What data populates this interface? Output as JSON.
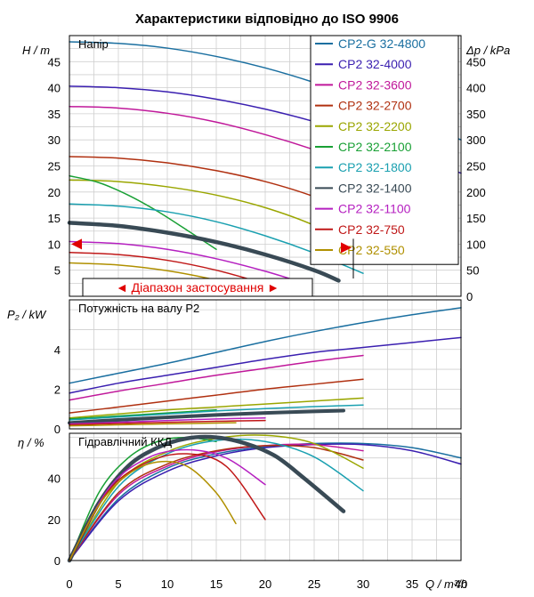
{
  "title": "Характеристики відповідно до ISO 9906",
  "chart_data": [
    {
      "type": "line",
      "panel": "head",
      "title": "Напір",
      "ylabel": "H / m",
      "y2label": "Δp / kPa",
      "xlim": [
        0,
        40
      ],
      "ylim": [
        0,
        50
      ],
      "y2lim": [
        0,
        500
      ],
      "yticks": [
        5,
        10,
        15,
        20,
        25,
        30,
        35,
        40,
        45
      ],
      "y2ticks": [
        0,
        50,
        100,
        150,
        200,
        250,
        300,
        350,
        400,
        450
      ],
      "legend_position": "top-right",
      "operating_range_label": "◄ Діапазон застосування ►",
      "operating_range": [
        0,
        29
      ],
      "series": [
        {
          "name": "CP2-G 32-4800",
          "color": "#1a6fa0",
          "x": [
            0,
            5,
            10,
            15,
            20,
            25,
            30,
            35,
            40
          ],
          "y": [
            48.8,
            48.5,
            47.6,
            46,
            43.8,
            41,
            37.7,
            34,
            30
          ]
        },
        {
          "name": "CP2 32-4000",
          "color": "#3a1fb0",
          "x": [
            0,
            5,
            10,
            15,
            20,
            25,
            30,
            35,
            40
          ],
          "y": [
            40.3,
            40,
            39.2,
            37.8,
            35.9,
            33.5,
            30.6,
            27.3,
            23.6
          ]
        },
        {
          "name": "CP2 32-3600",
          "color": "#c0189a",
          "x": [
            0,
            5,
            10,
            15,
            20,
            25,
            30
          ],
          "y": [
            36.4,
            36.1,
            35.1,
            33.4,
            31,
            28.1,
            24.7
          ]
        },
        {
          "name": "CP2 32-2700",
          "color": "#b03010",
          "x": [
            0,
            5,
            10,
            15,
            20,
            25,
            30
          ],
          "y": [
            26.8,
            26.5,
            25.6,
            24.1,
            22,
            19.1,
            15.1
          ]
        },
        {
          "name": "CP2 32-2200",
          "color": "#9aa600",
          "x": [
            0,
            5,
            10,
            15,
            20,
            25,
            30
          ],
          "y": [
            22.3,
            22,
            21,
            19.4,
            17,
            13.6,
            8.8
          ]
        },
        {
          "name": "CP2 32-2100",
          "color": "#19a035",
          "x": [
            0,
            3,
            6,
            9,
            12,
            15
          ],
          "y": [
            23.1,
            21.8,
            19.4,
            16.3,
            12.7,
            9
          ]
        },
        {
          "name": "CP2 32-1800",
          "color": "#1aa0b0",
          "x": [
            0,
            5,
            10,
            15,
            20,
            25,
            30
          ],
          "y": [
            17.7,
            17.3,
            16.2,
            14.3,
            11.6,
            8.3,
            4.4
          ]
        },
        {
          "name": "CP2 32-1400",
          "color": "#394a55",
          "x": [
            0,
            5,
            10,
            15,
            20,
            25,
            27.5
          ],
          "y": [
            14.1,
            13.5,
            12.2,
            10.4,
            8,
            5,
            3
          ]
        },
        {
          "name": "CP2 32-1100",
          "color": "#b520c0",
          "x": [
            0,
            5,
            10,
            15,
            20,
            24
          ],
          "y": [
            10.5,
            10.1,
            9,
            7.2,
            4.8,
            2.5
          ]
        },
        {
          "name": "CP2 32-750",
          "color": "#c01818",
          "x": [
            0,
            5,
            10,
            15,
            20
          ],
          "y": [
            8.4,
            8,
            6.9,
            5,
            2.4
          ]
        },
        {
          "name": "CP2 32-550",
          "color": "#b09000",
          "x": [
            0,
            5,
            10,
            15,
            18
          ],
          "y": [
            6.4,
            6,
            4.9,
            3.1,
            1.6
          ]
        }
      ]
    },
    {
      "type": "line",
      "panel": "power",
      "title": "Потужність на валу P2",
      "ylabel": "P₂ / kW",
      "xlim": [
        0,
        40
      ],
      "ylim": [
        0,
        6.5
      ],
      "yticks": [
        0,
        2,
        4
      ],
      "series": [
        {
          "name": "CP2-G 32-4800",
          "color": "#1a6fa0",
          "x": [
            0,
            5,
            10,
            15,
            20,
            25,
            30,
            35,
            40
          ],
          "y": [
            2.3,
            2.8,
            3.3,
            3.85,
            4.4,
            4.9,
            5.35,
            5.75,
            6.1
          ]
        },
        {
          "name": "CP2 32-4000",
          "color": "#3a1fb0",
          "x": [
            0,
            5,
            10,
            15,
            20,
            25,
            30,
            35,
            40
          ],
          "y": [
            1.8,
            2.3,
            2.7,
            3.1,
            3.5,
            3.85,
            4.1,
            4.35,
            4.6
          ]
        },
        {
          "name": "CP2 32-3600",
          "color": "#c0189a",
          "x": [
            0,
            5,
            10,
            15,
            20,
            25,
            30
          ],
          "y": [
            1.45,
            1.9,
            2.3,
            2.7,
            3.05,
            3.4,
            3.7
          ]
        },
        {
          "name": "CP2 32-2700",
          "color": "#b03010",
          "x": [
            0,
            5,
            10,
            15,
            20,
            25,
            30
          ],
          "y": [
            0.8,
            1.1,
            1.4,
            1.7,
            2,
            2.25,
            2.5
          ]
        },
        {
          "name": "CP2 32-2200",
          "color": "#9aa600",
          "x": [
            0,
            5,
            10,
            15,
            20,
            25,
            30
          ],
          "y": [
            0.55,
            0.75,
            0.95,
            1.1,
            1.25,
            1.4,
            1.55
          ]
        },
        {
          "name": "CP2 32-2100",
          "color": "#19a035",
          "x": [
            0,
            5,
            10,
            15
          ],
          "y": [
            0.5,
            0.65,
            0.8,
            0.95
          ]
        },
        {
          "name": "CP2 32-1800",
          "color": "#1aa0b0",
          "x": [
            0,
            5,
            10,
            15,
            20,
            25,
            30
          ],
          "y": [
            0.45,
            0.6,
            0.75,
            0.9,
            1.02,
            1.12,
            1.2
          ]
        },
        {
          "name": "CP2 32-1400",
          "color": "#394a55",
          "x": [
            0,
            5,
            10,
            15,
            20,
            25,
            28
          ],
          "y": [
            0.3,
            0.45,
            0.58,
            0.7,
            0.8,
            0.88,
            0.92
          ]
        },
        {
          "name": "CP2 32-1100",
          "color": "#b520c0",
          "x": [
            0,
            5,
            10,
            15,
            20
          ],
          "y": [
            0.25,
            0.33,
            0.42,
            0.5,
            0.55
          ]
        },
        {
          "name": "CP2 32-750",
          "color": "#c01818",
          "x": [
            0,
            5,
            10,
            15,
            20
          ],
          "y": [
            0.2,
            0.27,
            0.33,
            0.38,
            0.42
          ]
        },
        {
          "name": "CP2 32-550",
          "color": "#b09000",
          "x": [
            0,
            5,
            10,
            15,
            17
          ],
          "y": [
            0.15,
            0.2,
            0.25,
            0.29,
            0.31
          ]
        }
      ]
    },
    {
      "type": "line",
      "panel": "efficiency",
      "title": "Гідравлічний ККД",
      "ylabel": "η / %",
      "xlabel": "Q / m³/h",
      "xlim": [
        0,
        40
      ],
      "ylim": [
        0,
        62
      ],
      "xticks": [
        0,
        5,
        10,
        15,
        20,
        25,
        30,
        35,
        40
      ],
      "yticks": [
        0,
        20,
        40
      ],
      "series": [
        {
          "name": "CP2-G 32-4800",
          "color": "#1a6fa0",
          "x": [
            0,
            5,
            10,
            15,
            20,
            25,
            30,
            35,
            40
          ],
          "y": [
            0,
            30,
            45,
            52,
            55.5,
            57,
            57,
            55,
            50
          ]
        },
        {
          "name": "CP2 32-4000",
          "color": "#3a1fb0",
          "x": [
            0,
            5,
            10,
            15,
            20,
            25,
            30,
            35,
            40
          ],
          "y": [
            0,
            29,
            43.5,
            51,
            55,
            56.5,
            56.5,
            53.5,
            47
          ]
        },
        {
          "name": "CP2 32-3600",
          "color": "#c0189a",
          "x": [
            0,
            5,
            10,
            15,
            20,
            25,
            30
          ],
          "y": [
            0,
            32,
            46,
            53,
            56,
            56.5,
            53.5
          ]
        },
        {
          "name": "CP2 32-2700",
          "color": "#b03010",
          "x": [
            0,
            5,
            10,
            15,
            20,
            25,
            30
          ],
          "y": [
            0,
            33,
            47,
            53.5,
            56,
            55,
            49
          ]
        },
        {
          "name": "CP2 32-2200",
          "color": "#9aa600",
          "x": [
            0,
            5,
            10,
            15,
            20,
            25,
            30
          ],
          "y": [
            0,
            38,
            53,
            59.5,
            61,
            57,
            45
          ]
        },
        {
          "name": "CP2 32-2100",
          "color": "#19a035",
          "x": [
            0,
            3,
            6,
            9,
            12,
            15
          ],
          "y": [
            0,
            33,
            50,
            58,
            60,
            58
          ]
        },
        {
          "name": "CP2 32-1800",
          "color": "#1aa0b0",
          "x": [
            0,
            5,
            10,
            15,
            20,
            25,
            30
          ],
          "y": [
            0,
            36,
            52,
            58.5,
            58,
            50.5,
            34
          ]
        },
        {
          "name": "CP2 32-1400",
          "color": "#394a55",
          "x": [
            0,
            3,
            6,
            9,
            12,
            15,
            18,
            21,
            24,
            28
          ],
          "y": [
            0,
            28,
            46,
            55,
            59.5,
            60,
            57,
            51,
            40,
            24
          ]
        },
        {
          "name": "CP2 32-1100",
          "color": "#b520c0",
          "x": [
            0,
            4,
            8,
            12,
            16,
            20
          ],
          "y": [
            0,
            35,
            50,
            54,
            50,
            37
          ]
        },
        {
          "name": "CP2 32-750",
          "color": "#c01818",
          "x": [
            0,
            4,
            8,
            12,
            16,
            20
          ],
          "y": [
            0,
            34,
            48,
            52,
            46,
            20
          ]
        },
        {
          "name": "CP2 32-550",
          "color": "#b09000",
          "x": [
            0,
            3,
            6,
            9,
            12,
            15,
            17
          ],
          "y": [
            0,
            27,
            42,
            48,
            46,
            33,
            18
          ]
        }
      ]
    }
  ]
}
